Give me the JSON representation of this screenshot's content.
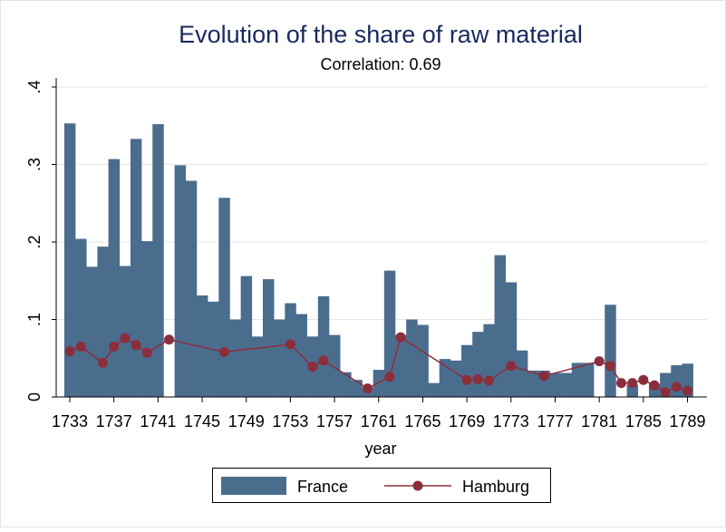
{
  "chart_data": {
    "type": "bar",
    "title": "Evolution of the share of raw material",
    "subtitle": "Correlation: 0.69",
    "xlabel": "year",
    "ylabel": "",
    "xlim": [
      1733,
      1789
    ],
    "ylim": [
      0,
      0.4
    ],
    "y_ticks": [
      {
        "value": 0,
        "label": "0"
      },
      {
        "value": 0.1,
        "label": ".1"
      },
      {
        "value": 0.2,
        "label": ".2"
      },
      {
        "value": 0.3,
        "label": ".3"
      },
      {
        "value": 0.4,
        "label": ".4"
      }
    ],
    "x_ticks": [
      {
        "value": 1733,
        "label": "1733"
      },
      {
        "value": 1737,
        "label": "1737"
      },
      {
        "value": 1741,
        "label": "1741"
      },
      {
        "value": 1745,
        "label": "1745"
      },
      {
        "value": 1749,
        "label": "1749"
      },
      {
        "value": 1753,
        "label": "1753"
      },
      {
        "value": 1757,
        "label": "1757"
      },
      {
        "value": 1761,
        "label": "1761"
      },
      {
        "value": 1765,
        "label": "1765"
      },
      {
        "value": 1769,
        "label": "1769"
      },
      {
        "value": 1773,
        "label": "1773"
      },
      {
        "value": 1777,
        "label": "1777"
      },
      {
        "value": 1781,
        "label": "1781"
      },
      {
        "value": 1785,
        "label": "1785"
      },
      {
        "value": 1789,
        "label": "1789"
      }
    ],
    "grid": true,
    "legend_position": "bottom",
    "series": [
      {
        "name": "France",
        "type": "bar",
        "color": "#4a6d8e",
        "points": [
          {
            "x": 1733,
            "y": 0.353
          },
          {
            "x": 1734,
            "y": 0.204
          },
          {
            "x": 1735,
            "y": 0.168
          },
          {
            "x": 1736,
            "y": 0.194
          },
          {
            "x": 1737,
            "y": 0.307
          },
          {
            "x": 1738,
            "y": 0.169
          },
          {
            "x": 1739,
            "y": 0.333
          },
          {
            "x": 1740,
            "y": 0.201
          },
          {
            "x": 1741,
            "y": 0.352
          },
          {
            "x": 1743,
            "y": 0.299
          },
          {
            "x": 1744,
            "y": 0.279
          },
          {
            "x": 1745,
            "y": 0.131
          },
          {
            "x": 1746,
            "y": 0.123
          },
          {
            "x": 1747,
            "y": 0.257
          },
          {
            "x": 1748,
            "y": 0.1
          },
          {
            "x": 1749,
            "y": 0.156
          },
          {
            "x": 1750,
            "y": 0.078
          },
          {
            "x": 1751,
            "y": 0.152
          },
          {
            "x": 1752,
            "y": 0.1
          },
          {
            "x": 1753,
            "y": 0.121
          },
          {
            "x": 1754,
            "y": 0.107
          },
          {
            "x": 1755,
            "y": 0.078
          },
          {
            "x": 1756,
            "y": 0.13
          },
          {
            "x": 1757,
            "y": 0.08
          },
          {
            "x": 1758,
            "y": 0.032
          },
          {
            "x": 1759,
            "y": 0.022
          },
          {
            "x": 1760,
            "y": 0.012
          },
          {
            "x": 1761,
            "y": 0.035
          },
          {
            "x": 1762,
            "y": 0.163
          },
          {
            "x": 1763,
            "y": 0.08
          },
          {
            "x": 1764,
            "y": 0.1
          },
          {
            "x": 1765,
            "y": 0.093
          },
          {
            "x": 1766,
            "y": 0.018
          },
          {
            "x": 1767,
            "y": 0.049
          },
          {
            "x": 1768,
            "y": 0.047
          },
          {
            "x": 1769,
            "y": 0.067
          },
          {
            "x": 1770,
            "y": 0.084
          },
          {
            "x": 1771,
            "y": 0.094
          },
          {
            "x": 1772,
            "y": 0.183
          },
          {
            "x": 1773,
            "y": 0.148
          },
          {
            "x": 1774,
            "y": 0.06
          },
          {
            "x": 1775,
            "y": 0.034
          },
          {
            "x": 1776,
            "y": 0.034
          },
          {
            "x": 1777,
            "y": 0.031
          },
          {
            "x": 1778,
            "y": 0.031
          },
          {
            "x": 1779,
            "y": 0.044
          },
          {
            "x": 1780,
            "y": 0.044
          },
          {
            "x": 1782,
            "y": 0.119
          },
          {
            "x": 1784,
            "y": 0.016
          },
          {
            "x": 1786,
            "y": 0.017
          },
          {
            "x": 1787,
            "y": 0.031
          },
          {
            "x": 1788,
            "y": 0.041
          },
          {
            "x": 1789,
            "y": 0.043
          }
        ]
      },
      {
        "name": "Hamburg",
        "type": "line",
        "color": "#8b2e3b",
        "points": [
          {
            "x": 1733,
            "y": 0.059
          },
          {
            "x": 1734,
            "y": 0.065
          },
          {
            "x": 1736,
            "y": 0.044
          },
          {
            "x": 1737,
            "y": 0.065
          },
          {
            "x": 1738,
            "y": 0.076
          },
          {
            "x": 1739,
            "y": 0.067
          },
          {
            "x": 1740,
            "y": 0.057
          },
          {
            "x": 1742,
            "y": 0.074
          },
          {
            "x": 1747,
            "y": 0.058
          },
          {
            "x": 1753,
            "y": 0.068
          },
          {
            "x": 1755,
            "y": 0.039
          },
          {
            "x": 1756,
            "y": 0.047
          },
          {
            "x": 1760,
            "y": 0.011
          },
          {
            "x": 1762,
            "y": 0.026
          },
          {
            "x": 1763,
            "y": 0.077
          },
          {
            "x": 1769,
            "y": 0.022
          },
          {
            "x": 1770,
            "y": 0.023
          },
          {
            "x": 1771,
            "y": 0.021
          },
          {
            "x": 1773,
            "y": 0.04
          },
          {
            "x": 1776,
            "y": 0.027
          },
          {
            "x": 1781,
            "y": 0.046
          },
          {
            "x": 1782,
            "y": 0.04
          },
          {
            "x": 1783,
            "y": 0.018
          },
          {
            "x": 1784,
            "y": 0.018
          },
          {
            "x": 1785,
            "y": 0.022
          },
          {
            "x": 1786,
            "y": 0.015
          },
          {
            "x": 1787,
            "y": 0.006
          },
          {
            "x": 1788,
            "y": 0.013
          },
          {
            "x": 1789,
            "y": 0.008
          }
        ]
      }
    ]
  }
}
